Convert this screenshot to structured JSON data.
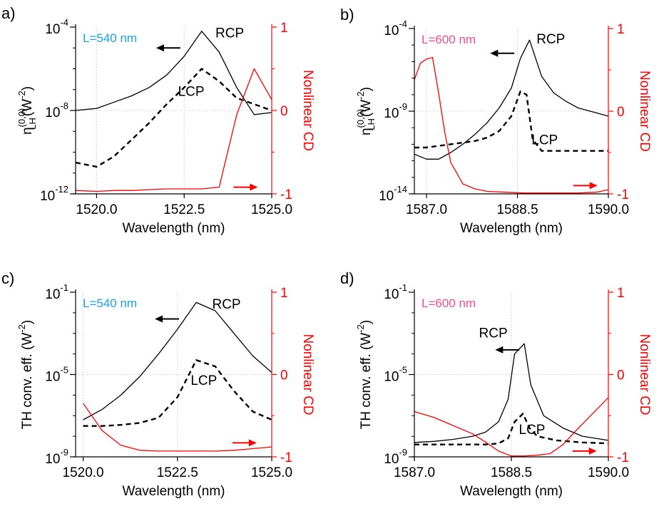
{
  "chart_data": [
    {
      "type": "line",
      "panel_label": "a)",
      "annotation": "L=540 nm",
      "annotation_color": "#1aa3e8",
      "xlabel": "Wavelength (nm)",
      "ylabel_left": "η(0,0) LH (W^-2)",
      "ylabel_left_parts": {
        "base": "η",
        "sup": "(0,0)",
        "sub": "LH",
        "unit_open": "(W",
        "unit_exp": "-2",
        "unit_close": ")"
      },
      "ylabel_right": "Nonlinear CD",
      "xlim": [
        1519.4,
        1525.0
      ],
      "xticks": [
        1520.0,
        1522.5,
        1525.0
      ],
      "xtick_labels": [
        "1520.0",
        "1522.5",
        "1525.0"
      ],
      "ylim_left_log10": [
        -12,
        -4
      ],
      "yticks_left": [
        {
          "base": "10",
          "exp": "-4"
        },
        {
          "base": "10",
          "exp": "-8"
        },
        {
          "base": "10",
          "exp": "-12"
        }
      ],
      "yticks_left_log10": [
        -4,
        -8,
        -12
      ],
      "yscale_left": "log",
      "ylim_right": [
        -1,
        1
      ],
      "yticks_right": [
        "1",
        "0",
        "-1"
      ],
      "yticks_right_values": [
        1,
        0,
        -1
      ],
      "left_arrow": {
        "x": 1521.7,
        "y_log10": -5.0
      },
      "right_arrow": {
        "x": 1524.6,
        "y": -0.92
      },
      "series": [
        {
          "name": "RCP",
          "axis": "left",
          "style": "solid",
          "color": "#000000",
          "x": [
            1519.4,
            1520.0,
            1520.5,
            1521.0,
            1521.5,
            1522.0,
            1522.5,
            1523.0,
            1523.5,
            1524.0,
            1524.5,
            1525.0
          ],
          "y_log10": [
            -8.0,
            -7.9,
            -7.6,
            -7.3,
            -6.9,
            -6.3,
            -5.4,
            -4.2,
            -5.2,
            -6.9,
            -8.2,
            -8.1
          ],
          "label": {
            "text": "RCP",
            "x": 1523.8,
            "y_log10": -4.5
          }
        },
        {
          "name": "LCP",
          "axis": "left",
          "style": "dashed",
          "color": "#000000",
          "x": [
            1519.4,
            1520.0,
            1520.5,
            1521.0,
            1521.5,
            1522.0,
            1522.5,
            1523.0,
            1523.5,
            1524.0,
            1524.5,
            1525.0
          ],
          "y_log10": [
            -10.5,
            -10.7,
            -10.2,
            -9.4,
            -8.6,
            -7.7,
            -6.9,
            -6.0,
            -6.6,
            -7.4,
            -7.7,
            -8.0
          ],
          "label": {
            "text": "LCP",
            "x": 1522.7,
            "y_log10": -7.3
          }
        },
        {
          "name": "Nonlinear CD",
          "axis": "right",
          "style": "solid",
          "color": "#ff0000",
          "x": [
            1519.4,
            1520.0,
            1520.5,
            1521.0,
            1521.5,
            1522.0,
            1522.5,
            1523.0,
            1523.5,
            1524.0,
            1524.5,
            1525.0
          ],
          "y": [
            -0.96,
            -0.97,
            -0.96,
            -0.96,
            -0.95,
            -0.94,
            -0.94,
            -0.94,
            -0.92,
            -0.05,
            0.5,
            0.13
          ]
        }
      ]
    },
    {
      "type": "line",
      "panel_label": "b)",
      "annotation": "L=600 nm",
      "annotation_color": "#ee4d8f",
      "xlabel": "Wavelength (nm)",
      "ylabel_left": "η(0,0) LH (W^-2)",
      "ylabel_left_parts": {
        "base": "η",
        "sup": "(0,0)",
        "sub": "LH",
        "unit_open": "(W",
        "unit_exp": "-2",
        "unit_close": ")"
      },
      "ylabel_right": "Nonlinear CD",
      "xlim": [
        1586.8,
        1590.0
      ],
      "xticks": [
        1587.0,
        1588.5,
        1590.0
      ],
      "xtick_labels": [
        "1587.0",
        "1588.5",
        "1590.0"
      ],
      "ylim_left_log10": [
        -14,
        -4
      ],
      "yticks_left": [
        {
          "base": "10",
          "exp": "-4"
        },
        {
          "base": "10",
          "exp": "-9"
        },
        {
          "base": "10",
          "exp": "-14"
        }
      ],
      "yticks_left_log10": [
        -4,
        -9,
        -14
      ],
      "yscale_left": "log",
      "ylim_right": [
        -1,
        1
      ],
      "yticks_right": [
        "1",
        "0",
        "-1"
      ],
      "yticks_right_values": [
        1,
        0,
        -1
      ],
      "left_arrow": {
        "x": 1588.05,
        "y_log10": -5.5
      },
      "right_arrow": {
        "x": 1589.82,
        "y": -0.9
      },
      "series": [
        {
          "name": "RCP",
          "axis": "left",
          "style": "solid",
          "color": "#000000",
          "x": [
            1586.8,
            1587.0,
            1587.2,
            1587.4,
            1587.6,
            1587.8,
            1588.0,
            1588.2,
            1588.4,
            1588.55,
            1588.7,
            1588.9,
            1589.1,
            1589.3,
            1589.5,
            1589.7,
            1590.0
          ],
          "y_log10": [
            -11.6,
            -11.9,
            -11.9,
            -11.5,
            -11.0,
            -10.4,
            -9.7,
            -8.8,
            -7.6,
            -5.8,
            -4.7,
            -6.9,
            -7.9,
            -8.4,
            -8.8,
            -9.0,
            -9.3
          ],
          "label": {
            "text": "RCP",
            "x": 1589.05,
            "y_log10": -4.9
          }
        },
        {
          "name": "LCP",
          "axis": "left",
          "style": "dashed",
          "color": "#000000",
          "x": [
            1586.8,
            1587.0,
            1587.2,
            1587.4,
            1587.6,
            1587.8,
            1588.0,
            1588.2,
            1588.4,
            1588.55,
            1588.65,
            1588.75,
            1588.9,
            1589.1,
            1589.5,
            1590.0
          ],
          "y_log10": [
            -11.2,
            -11.2,
            -11.1,
            -11.0,
            -10.9,
            -10.8,
            -10.6,
            -10.2,
            -9.3,
            -7.8,
            -8.0,
            -10.7,
            -11.4,
            -11.4,
            -11.4,
            -11.4
          ],
          "label": {
            "text": "LCP",
            "x": 1588.95,
            "y_log10": -11.0
          }
        },
        {
          "name": "Nonlinear CD",
          "axis": "right",
          "style": "solid",
          "color": "#ff0000",
          "x": [
            1586.8,
            1586.9,
            1587.0,
            1587.1,
            1587.2,
            1587.3,
            1587.4,
            1587.6,
            1587.8,
            1588.0,
            1588.3,
            1588.6,
            1589.0,
            1589.5,
            1589.8,
            1590.0
          ],
          "y": [
            0.38,
            0.58,
            0.63,
            0.65,
            0.22,
            -0.25,
            -0.62,
            -0.88,
            -0.94,
            -0.97,
            -0.98,
            -0.99,
            -0.99,
            -0.99,
            -0.98,
            -0.95
          ]
        }
      ]
    },
    {
      "type": "line",
      "panel_label": "c)",
      "annotation": "L=540 nm",
      "annotation_color": "#1aa3e8",
      "xlabel": "Wavelength (nm)",
      "ylabel_left": "TH conv. eff. (W^-2)",
      "ylabel_left_parts": {
        "base": "TH conv. eff. ",
        "sup": "",
        "sub": "",
        "unit_open": "(W",
        "unit_exp": "-2",
        "unit_close": ")"
      },
      "ylabel_right": "Nonlinear CD",
      "xlim": [
        1519.8,
        1525.0
      ],
      "xticks": [
        1520.0,
        1522.5,
        1525.0
      ],
      "xtick_labels": [
        "1520.0",
        "1522.5",
        "1525.0"
      ],
      "ylim_left_log10": [
        -9,
        -1
      ],
      "yticks_left": [
        {
          "base": "10",
          "exp": "-1"
        },
        {
          "base": "10",
          "exp": "-5"
        },
        {
          "base": "10",
          "exp": "-9"
        }
      ],
      "yticks_left_log10": [
        -1,
        -5,
        -9
      ],
      "yscale_left": "log",
      "ylim_right": [
        -1,
        1
      ],
      "yticks_right": [
        "1",
        "0",
        "-1"
      ],
      "yticks_right_values": [
        1,
        0,
        -1
      ],
      "left_arrow": {
        "x": 1521.9,
        "y_log10": -2.3
      },
      "right_arrow": {
        "x": 1524.6,
        "y": -0.83
      },
      "series": [
        {
          "name": "RCP",
          "axis": "left",
          "style": "solid",
          "color": "#000000",
          "x": [
            1520.0,
            1520.5,
            1521.0,
            1521.5,
            1522.0,
            1522.5,
            1523.0,
            1523.5,
            1524.0,
            1524.5,
            1525.0
          ],
          "y_log10": [
            -7.2,
            -6.7,
            -6.0,
            -5.1,
            -4.0,
            -2.8,
            -1.5,
            -1.9,
            -3.0,
            -4.1,
            -4.9
          ],
          "label": {
            "text": "RCP",
            "x": 1523.8,
            "y_log10": -1.8
          }
        },
        {
          "name": "LCP",
          "axis": "left",
          "style": "dashed",
          "color": "#000000",
          "x": [
            1520.0,
            1520.5,
            1521.0,
            1521.5,
            1522.0,
            1522.5,
            1523.0,
            1523.5,
            1524.0,
            1524.5,
            1525.0
          ],
          "y_log10": [
            -7.5,
            -7.5,
            -7.45,
            -7.35,
            -7.1,
            -6.1,
            -4.3,
            -4.6,
            -5.8,
            -6.8,
            -7.2
          ],
          "label": {
            "text": "LCP",
            "x": 1523.2,
            "y_log10": -5.5
          }
        },
        {
          "name": "Nonlinear CD",
          "axis": "right",
          "style": "solid",
          "color": "#ff0000",
          "x": [
            1520.0,
            1520.5,
            1521.0,
            1521.5,
            1522.0,
            1522.5,
            1523.0,
            1523.5,
            1524.0,
            1524.5,
            1525.0
          ],
          "y": [
            -0.35,
            -0.68,
            -0.86,
            -0.92,
            -0.93,
            -0.93,
            -0.93,
            -0.93,
            -0.92,
            -0.9,
            -0.88
          ]
        }
      ]
    },
    {
      "type": "line",
      "panel_label": "d)",
      "annotation": "L=600 nm",
      "annotation_color": "#ee4d8f",
      "xlabel": "Wavelength (nm)",
      "ylabel_left": "TH conv. eff. (W^-2)",
      "ylabel_left_parts": {
        "base": "TH conv. eff. ",
        "sup": "",
        "sub": "",
        "unit_open": "(W",
        "unit_exp": "-2",
        "unit_close": ")"
      },
      "ylabel_right": "Nonlinear CD",
      "xlim": [
        1587.0,
        1590.0
      ],
      "xticks": [
        1587.0,
        1588.5,
        1590.0
      ],
      "xtick_labels": [
        "1587.0",
        "1588.5",
        "1590.0"
      ],
      "ylim_left_log10": [
        -9,
        -1
      ],
      "yticks_left": [
        {
          "base": "10",
          "exp": "-1"
        },
        {
          "base": "10",
          "exp": "-5"
        },
        {
          "base": "10",
          "exp": "-9"
        }
      ],
      "yticks_left_log10": [
        -1,
        -5,
        -9
      ],
      "yscale_left": "log",
      "ylim_right": [
        -1,
        1
      ],
      "yticks_right": [
        "1",
        "0",
        "-1"
      ],
      "yticks_right_values": [
        1,
        0,
        -1
      ],
      "left_arrow": {
        "x": 1588.25,
        "y_log10": -3.8
      },
      "right_arrow": {
        "x": 1589.82,
        "y": -0.93
      },
      "series": [
        {
          "name": "RCP",
          "axis": "left",
          "style": "solid",
          "color": "#000000",
          "x": [
            1587.0,
            1587.3,
            1587.6,
            1587.9,
            1588.1,
            1588.3,
            1588.45,
            1588.55,
            1588.7,
            1588.8,
            1589.0,
            1589.3,
            1589.6,
            1590.0
          ],
          "y_log10": [
            -8.3,
            -8.25,
            -8.15,
            -8.0,
            -7.8,
            -7.3,
            -6.2,
            -4.0,
            -3.5,
            -5.5,
            -7.0,
            -7.6,
            -8.0,
            -8.2
          ],
          "label": {
            "text": "RCP",
            "x": 1588.22,
            "y_log10": -3.2
          }
        },
        {
          "name": "LCP",
          "axis": "left",
          "style": "dashed",
          "color": "#000000",
          "x": [
            1587.0,
            1587.3,
            1587.6,
            1587.9,
            1588.1,
            1588.3,
            1588.45,
            1588.55,
            1588.68,
            1588.78,
            1588.9,
            1589.2,
            1589.6,
            1590.0
          ],
          "y_log10": [
            -8.4,
            -8.4,
            -8.4,
            -8.4,
            -8.4,
            -8.35,
            -8.1,
            -7.3,
            -6.9,
            -7.6,
            -8.0,
            -8.2,
            -8.3,
            -8.35
          ],
          "label": {
            "text": "LCP",
            "x": 1588.82,
            "y_log10": -7.9
          }
        },
        {
          "name": "Nonlinear CD",
          "axis": "right",
          "style": "solid",
          "color": "#ff0000",
          "x": [
            1587.0,
            1587.3,
            1587.6,
            1587.9,
            1588.1,
            1588.3,
            1588.5,
            1588.7,
            1588.9,
            1589.1,
            1589.3,
            1589.5,
            1589.7,
            1589.85,
            1590.0
          ],
          "y": [
            -0.45,
            -0.52,
            -0.62,
            -0.72,
            -0.82,
            -0.93,
            -0.99,
            -0.99,
            -0.98,
            -0.96,
            -0.85,
            -0.68,
            -0.52,
            -0.4,
            -0.28
          ]
        }
      ]
    }
  ]
}
